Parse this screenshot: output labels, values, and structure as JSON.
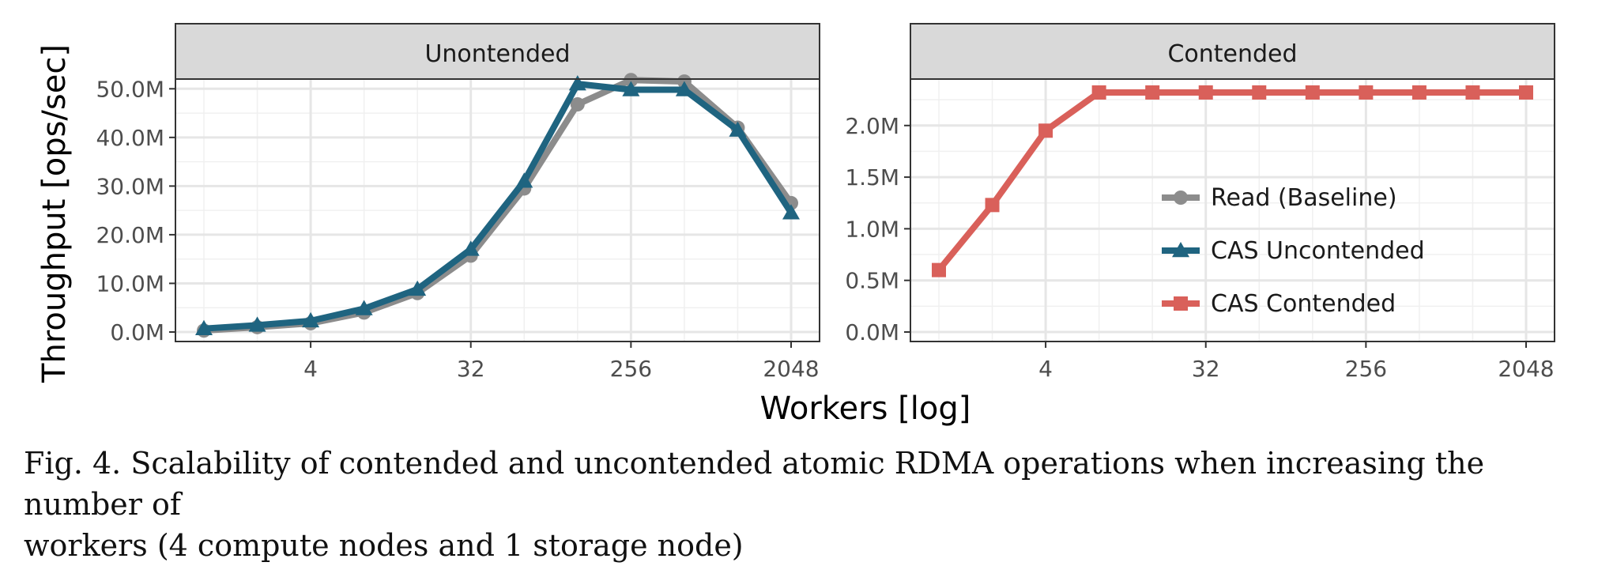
{
  "chart_data": [
    {
      "type": "line",
      "title": "Unontended",
      "ylabel": "Throughput [ops/sec]",
      "xscale": "log2",
      "xlim": [
        1,
        2048
      ],
      "ylim": [
        0,
        52000000
      ],
      "x": [
        1,
        2,
        4,
        8,
        16,
        32,
        64,
        128,
        256,
        512,
        1024,
        2048
      ],
      "xticks": [
        4,
        32,
        256,
        2048
      ],
      "xtick_labels": [
        "4",
        "32",
        "256",
        "2048"
      ],
      "yticks": [
        0,
        10000000,
        20000000,
        30000000,
        40000000,
        50000000
      ],
      "ytick_labels": [
        "0.0M",
        "10.0M",
        "20.0M",
        "30.0M",
        "40.0M",
        "50.0M"
      ],
      "grid": true,
      "series": [
        {
          "name": "Read (Baseline)",
          "color": "#8c8c8c",
          "marker": "circle",
          "values": [
            300000,
            1000000,
            1800000,
            4000000,
            8000000,
            15700000,
            29500000,
            46800000,
            51800000,
            51500000,
            42000000,
            26500000
          ]
        },
        {
          "name": "CAS Uncontended",
          "color": "#1f6480",
          "marker": "triangle",
          "values": [
            700000,
            1400000,
            2300000,
            4800000,
            8800000,
            17000000,
            31000000,
            51000000,
            49800000,
            49800000,
            41500000,
            24500000
          ]
        }
      ]
    },
    {
      "type": "line",
      "title": "Contended",
      "xscale": "log2",
      "xlim": [
        1,
        2048
      ],
      "ylim": [
        0,
        2450000
      ],
      "x": [
        1,
        2,
        4,
        8,
        16,
        32,
        64,
        128,
        256,
        512,
        1024,
        2048
      ],
      "xticks": [
        4,
        32,
        256,
        2048
      ],
      "xtick_labels": [
        "4",
        "32",
        "256",
        "2048"
      ],
      "yticks": [
        0,
        500000,
        1000000,
        1500000,
        2000000
      ],
      "ytick_labels": [
        "0.0M",
        "0.5M",
        "1.0M",
        "1.5M",
        "2.0M"
      ],
      "grid": true,
      "legend_position": "center-right",
      "series": [
        {
          "name": "CAS Contended",
          "color": "#d9605a",
          "marker": "square",
          "values": [
            600000,
            1230000,
            1950000,
            2320000,
            2320000,
            2320000,
            2320000,
            2320000,
            2320000,
            2320000,
            2320000,
            2320000
          ]
        }
      ]
    }
  ],
  "xlabel": "Workers [log]",
  "legend": [
    {
      "name": "Read (Baseline)",
      "color": "#8c8c8c",
      "marker": "circle"
    },
    {
      "name": "CAS Uncontended",
      "color": "#1f6480",
      "marker": "triangle"
    },
    {
      "name": "CAS Contended",
      "color": "#d9605a",
      "marker": "square"
    }
  ],
  "caption": {
    "line1": "Fig. 4.  Scalability of contended and uncontended atomic RDMA operations when increasing the number of",
    "line2": "workers (4 compute nodes and 1 storage node)"
  }
}
